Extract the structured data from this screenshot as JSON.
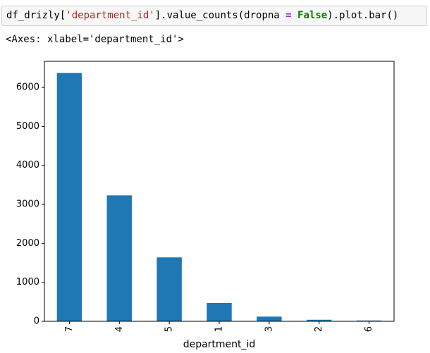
{
  "cell": {
    "code_parts": [
      {
        "text": "df_drizly[",
        "cls": "tok-plain"
      },
      {
        "text": "'department_id'",
        "cls": "tok-str"
      },
      {
        "text": "].value_counts(dropna ",
        "cls": "tok-plain"
      },
      {
        "text": "=",
        "cls": "tok-op"
      },
      {
        "text": " ",
        "cls": "tok-plain"
      },
      {
        "text": "False",
        "cls": "tok-kw"
      },
      {
        "text": ").plot.bar()",
        "cls": "tok-plain"
      }
    ],
    "output_text": "<Axes: xlabel='department_id'>"
  },
  "colors": {
    "bar": "#1f77b4",
    "axis": "#000000"
  },
  "chart_data": {
    "type": "bar",
    "categories": [
      "7",
      "4",
      "5",
      "1",
      "3",
      "2",
      "6"
    ],
    "values": [
      6370,
      3230,
      1640,
      470,
      120,
      40,
      20
    ],
    "xlabel": "department_id",
    "ylabel": "",
    "ylim": [
      0,
      6670
    ],
    "yticks": [
      0,
      1000,
      2000,
      3000,
      4000,
      5000,
      6000
    ],
    "tick_labels_rotation": "vertical",
    "grid": false
  }
}
